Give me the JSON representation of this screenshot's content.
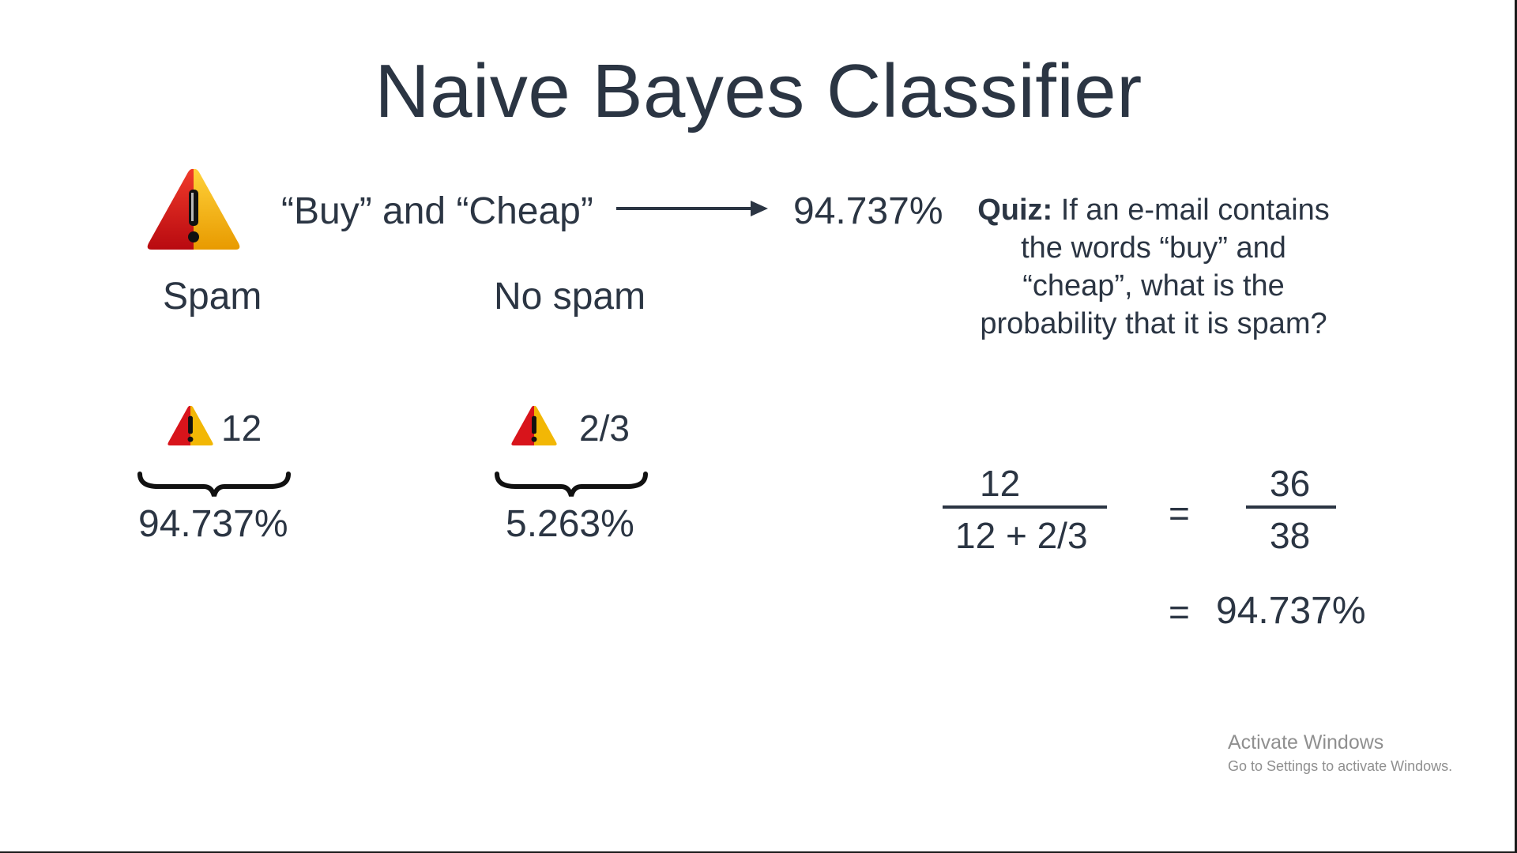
{
  "slide": {
    "title": "Naive Bayes Classifier"
  },
  "header_row": {
    "words": "“Buy” and “Cheap”",
    "result": "94.737%"
  },
  "columns": {
    "spam_label": "Spam",
    "no_spam_label": "No spam",
    "spam_count": "12",
    "no_spam_count": "2/3",
    "spam_percent": "94.737%",
    "no_spam_percent": "5.263%"
  },
  "quiz": {
    "label": "Quiz:",
    "text": " If an e-mail contains the words “buy” and “cheap”, what is the probability that it is spam?"
  },
  "equation": {
    "numerator": "12",
    "denominator": "12 + 2/3",
    "equals": "=",
    "rhs_numerator": "36",
    "rhs_denominator": "38",
    "result_equals": "=",
    "result": "94.737%"
  },
  "watermark": {
    "title": "Activate Windows",
    "subtitle": "Go to Settings to activate Windows."
  },
  "icons": {
    "warning": "warning-triangle-icon",
    "arrow": "right-arrow-icon",
    "brace": "curly-brace-icon"
  },
  "colors": {
    "text": "#2b3543",
    "warning_red": "#d8141b",
    "warning_yellow": "#f2b705",
    "watermark": "#8f8f8f"
  }
}
